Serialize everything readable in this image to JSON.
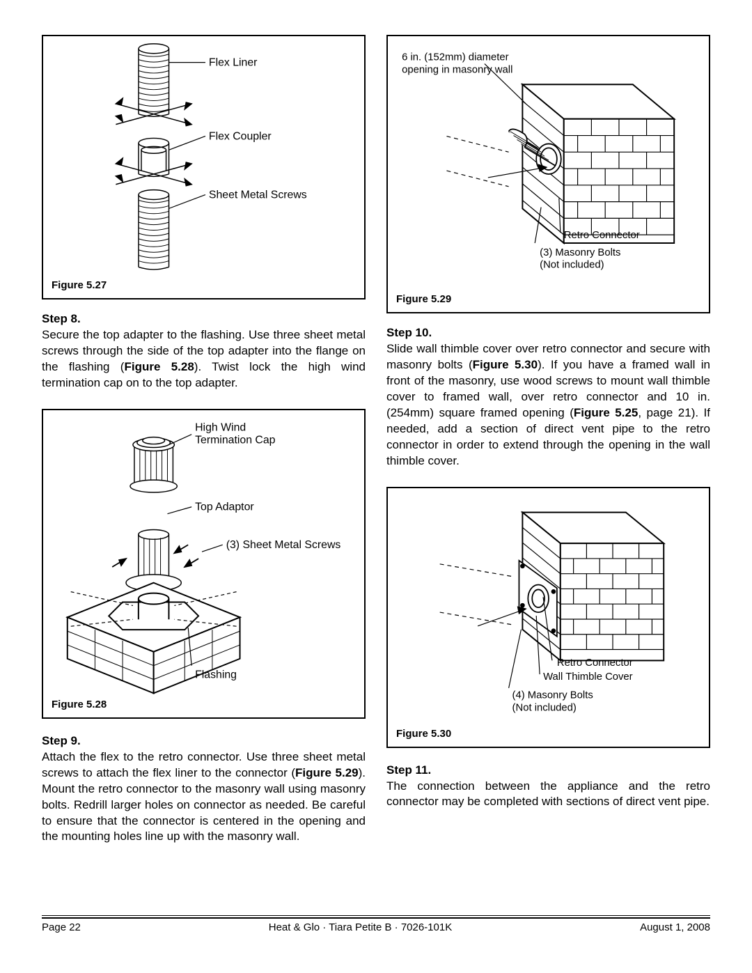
{
  "footer": {
    "page": "Page  22",
    "center": "Heat & Glo · Tiara Petite B · 7026-101K",
    "date": "August 1, 2008"
  },
  "fig27": {
    "caption": "Figure 5.27",
    "lbl_liner": "Flex Liner",
    "lbl_coupler": "Flex Coupler",
    "lbl_screws": "Sheet Metal Screws"
  },
  "fig28": {
    "caption": "Figure 5.28",
    "lbl_cap1": "High Wind",
    "lbl_cap2": "Termination Cap",
    "lbl_adaptor": "Top Adaptor",
    "lbl_screws": "(3) Sheet Metal Screws",
    "lbl_flashing": "Flashing"
  },
  "fig29": {
    "caption": "Figure 5.29",
    "lbl_open1": "6 in. (152mm) diameter",
    "lbl_open2": "opening in masonry wall",
    "lbl_retro": "Retro Connector",
    "lbl_bolts1": "(3) Masonry Bolts",
    "lbl_bolts2": "(Not included)"
  },
  "fig30": {
    "caption": "Figure 5.30",
    "lbl_retro": "Retro Connector",
    "lbl_cover": "Wall Thimble Cover",
    "lbl_bolts1": "(4) Masonry Bolts",
    "lbl_bolts2": "(Not included)"
  },
  "step8": {
    "title": "Step 8.",
    "text": "Secure the top adapter to the flashing. Use three sheet metal screws through the side of the top adapter into the flange on the flashing (<b>Figure 5.28</b>). Twist lock the high wind termination cap on to the top adapter."
  },
  "step9": {
    "title": "Step 9.",
    "text": "Attach the flex to the retro connector. Use three sheet metal screws to attach the flex liner to the connector (<b>Figure 5.29</b>). Mount the retro connector to the masonry wall using masonry bolts. Redrill larger holes on connector as needed. Be careful to ensure that the connector is centered in the opening and the mounting holes line up with the masonry wall."
  },
  "step10": {
    "title": "Step 10.",
    "text": "Slide wall thimble cover over retro connector and secure with masonry bolts (<b>Figure 5.30</b>). If you have a framed wall in front of the masonry, use wood screws to mount wall thimble cover to framed wall, over retro connector and 10 in. (254mm) square framed opening (<b>Figure 5.25</b>, page 21). If needed, add a section of direct vent pipe to the retro connector in order to extend through the opening in the wall thimble cover."
  },
  "step11": {
    "title": "Step 11.",
    "text": "The connection between the appliance and the retro connector may be completed with sections of direct vent pipe."
  }
}
